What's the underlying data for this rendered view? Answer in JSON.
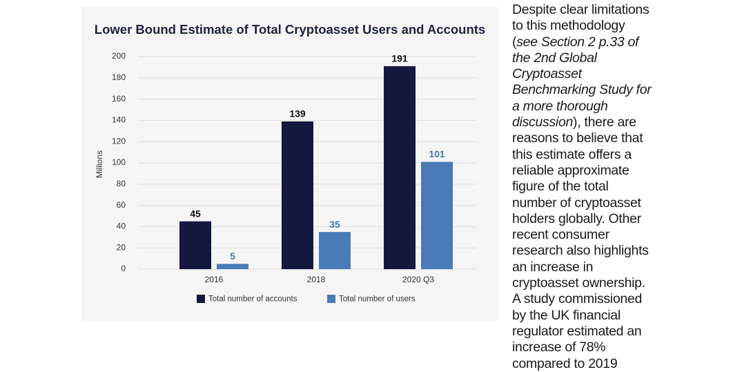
{
  "chart_data": {
    "type": "bar",
    "title": "Lower Bound Estimate of Total Cryptoasset Users and Accounts",
    "ylabel": "Millions",
    "categories": [
      "2016",
      "2018",
      "2020 Q3"
    ],
    "series": [
      {
        "name": "Total number of accounts",
        "color": "#15183f",
        "values": [
          45,
          139,
          191
        ]
      },
      {
        "name": "Total number of users",
        "color": "#4a7bb7",
        "values": [
          5,
          35,
          101
        ]
      }
    ],
    "ylim": [
      0,
      200
    ],
    "yticks": [
      0,
      20,
      40,
      60,
      80,
      100,
      120,
      140,
      160,
      180,
      200
    ],
    "grid": true,
    "legend": "bottom"
  },
  "article": {
    "paragraph": [
      "Despite clear limitations to this methodology (",
      "see Section 2 p.33 of the 2nd Global Cryptoasset Benchmarking Study for a more thorough discussion",
      "), there are reasons to believe that this estimate offers a reliable approximate figure of the total number of cryptoasset holders globally. Other recent consumer research also highlights an increase in cryptoasset ownership. A study commissioned by the UK financial regulator estimated an increase of 78% compared to 2019"
    ]
  }
}
